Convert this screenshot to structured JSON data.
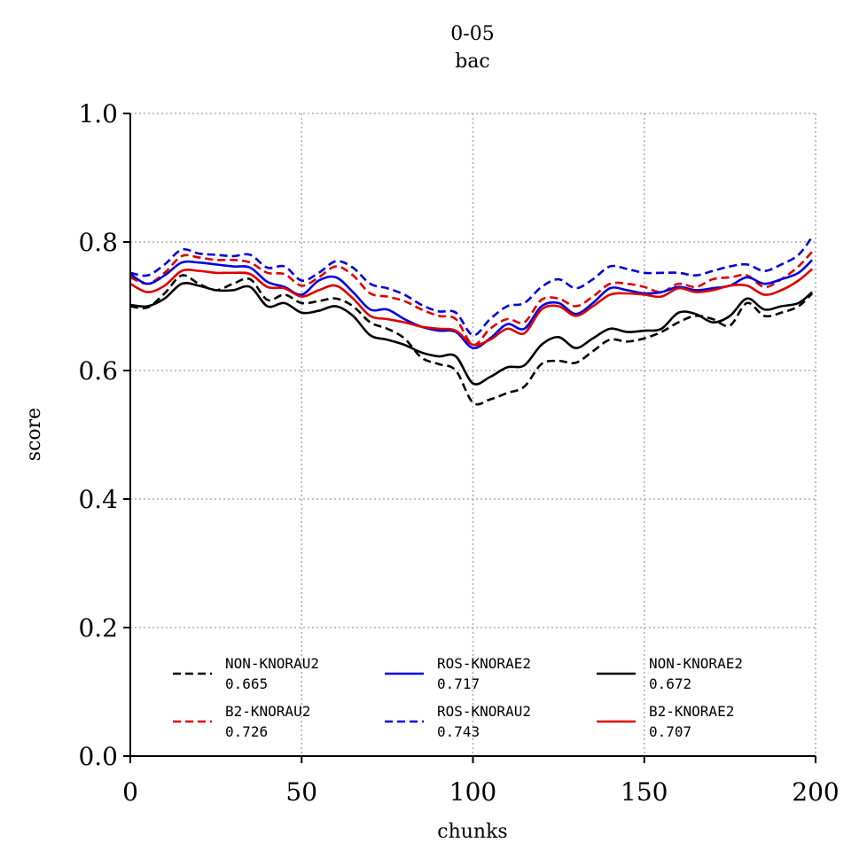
{
  "chart_data": {
    "type": "line",
    "title": "0-05",
    "subtitle": "bac",
    "xlabel": "chunks",
    "ylabel": "score",
    "xlim": [
      0,
      200
    ],
    "ylim": [
      0.0,
      1.0
    ],
    "x_ticks": [
      "0",
      "50",
      "100",
      "150",
      "200"
    ],
    "y_ticks": [
      "0.0",
      "0.2",
      "0.4",
      "0.6",
      "0.8",
      "1.0"
    ],
    "grid": true,
    "legend_position": "lower-center",
    "legend_columns": 3,
    "x": [
      0,
      5,
      10,
      15,
      20,
      25,
      30,
      35,
      40,
      45,
      50,
      55,
      60,
      65,
      70,
      75,
      80,
      85,
      90,
      95,
      100,
      105,
      110,
      115,
      120,
      125,
      130,
      135,
      140,
      145,
      150,
      155,
      160,
      165,
      170,
      175,
      180,
      185,
      190,
      195,
      199
    ],
    "series": [
      {
        "name": "NON-KNORAU2",
        "score": "0.665",
        "color": "#000000",
        "dashed": true,
        "values": [
          0.7,
          0.698,
          0.72,
          0.748,
          0.735,
          0.725,
          0.735,
          0.742,
          0.71,
          0.718,
          0.705,
          0.708,
          0.712,
          0.7,
          0.675,
          0.665,
          0.65,
          0.62,
          0.61,
          0.6,
          0.55,
          0.555,
          0.565,
          0.575,
          0.61,
          0.615,
          0.612,
          0.63,
          0.648,
          0.645,
          0.65,
          0.66,
          0.675,
          0.685,
          0.68,
          0.67,
          0.705,
          0.685,
          0.69,
          0.7,
          0.72
        ]
      },
      {
        "name": "B2-KNORAU2",
        "score": "0.726",
        "color": "#dd0000",
        "dashed": true,
        "values": [
          0.745,
          0.735,
          0.752,
          0.778,
          0.776,
          0.772,
          0.772,
          0.768,
          0.752,
          0.75,
          0.732,
          0.745,
          0.762,
          0.748,
          0.72,
          0.715,
          0.708,
          0.695,
          0.685,
          0.68,
          0.64,
          0.665,
          0.68,
          0.675,
          0.71,
          0.712,
          0.7,
          0.715,
          0.735,
          0.735,
          0.73,
          0.722,
          0.735,
          0.73,
          0.742,
          0.745,
          0.748,
          0.73,
          0.742,
          0.762,
          0.785
        ]
      },
      {
        "name": "ROS-KNORAE2",
        "score": "0.717",
        "color": "#0000dd",
        "dashed": false,
        "values": [
          0.75,
          0.735,
          0.748,
          0.768,
          0.768,
          0.765,
          0.762,
          0.76,
          0.738,
          0.73,
          0.718,
          0.74,
          0.745,
          0.722,
          0.695,
          0.695,
          0.68,
          0.668,
          0.662,
          0.66,
          0.635,
          0.65,
          0.672,
          0.665,
          0.7,
          0.705,
          0.688,
          0.705,
          0.728,
          0.725,
          0.72,
          0.722,
          0.73,
          0.725,
          0.728,
          0.732,
          0.745,
          0.735,
          0.742,
          0.752,
          0.772
        ]
      },
      {
        "name": "ROS-KNORAU2",
        "score": "0.743",
        "color": "#0000dd",
        "dashed": true,
        "values": [
          0.752,
          0.748,
          0.765,
          0.788,
          0.782,
          0.78,
          0.778,
          0.78,
          0.76,
          0.762,
          0.74,
          0.752,
          0.77,
          0.76,
          0.735,
          0.728,
          0.718,
          0.702,
          0.692,
          0.69,
          0.655,
          0.68,
          0.7,
          0.705,
          0.73,
          0.742,
          0.728,
          0.742,
          0.762,
          0.758,
          0.752,
          0.752,
          0.752,
          0.748,
          0.755,
          0.762,
          0.765,
          0.755,
          0.765,
          0.78,
          0.808
        ]
      },
      {
        "name": "NON-KNORAE2",
        "score": "0.672",
        "color": "#000000",
        "dashed": false,
        "values": [
          0.702,
          0.7,
          0.712,
          0.735,
          0.732,
          0.725,
          0.725,
          0.73,
          0.7,
          0.705,
          0.69,
          0.693,
          0.7,
          0.685,
          0.655,
          0.648,
          0.64,
          0.628,
          0.622,
          0.622,
          0.58,
          0.59,
          0.605,
          0.608,
          0.64,
          0.652,
          0.635,
          0.65,
          0.665,
          0.66,
          0.662,
          0.665,
          0.69,
          0.688,
          0.675,
          0.685,
          0.712,
          0.695,
          0.7,
          0.705,
          0.722
        ]
      },
      {
        "name": "B2-KNORAE2",
        "score": "0.707",
        "color": "#dd0000",
        "dashed": false,
        "values": [
          0.735,
          0.722,
          0.732,
          0.755,
          0.755,
          0.752,
          0.752,
          0.75,
          0.73,
          0.728,
          0.715,
          0.725,
          0.732,
          0.712,
          0.685,
          0.68,
          0.675,
          0.668,
          0.665,
          0.662,
          0.64,
          0.648,
          0.665,
          0.658,
          0.695,
          0.7,
          0.685,
          0.7,
          0.718,
          0.72,
          0.718,
          0.715,
          0.728,
          0.722,
          0.725,
          0.732,
          0.732,
          0.718,
          0.725,
          0.74,
          0.758
        ]
      }
    ]
  }
}
